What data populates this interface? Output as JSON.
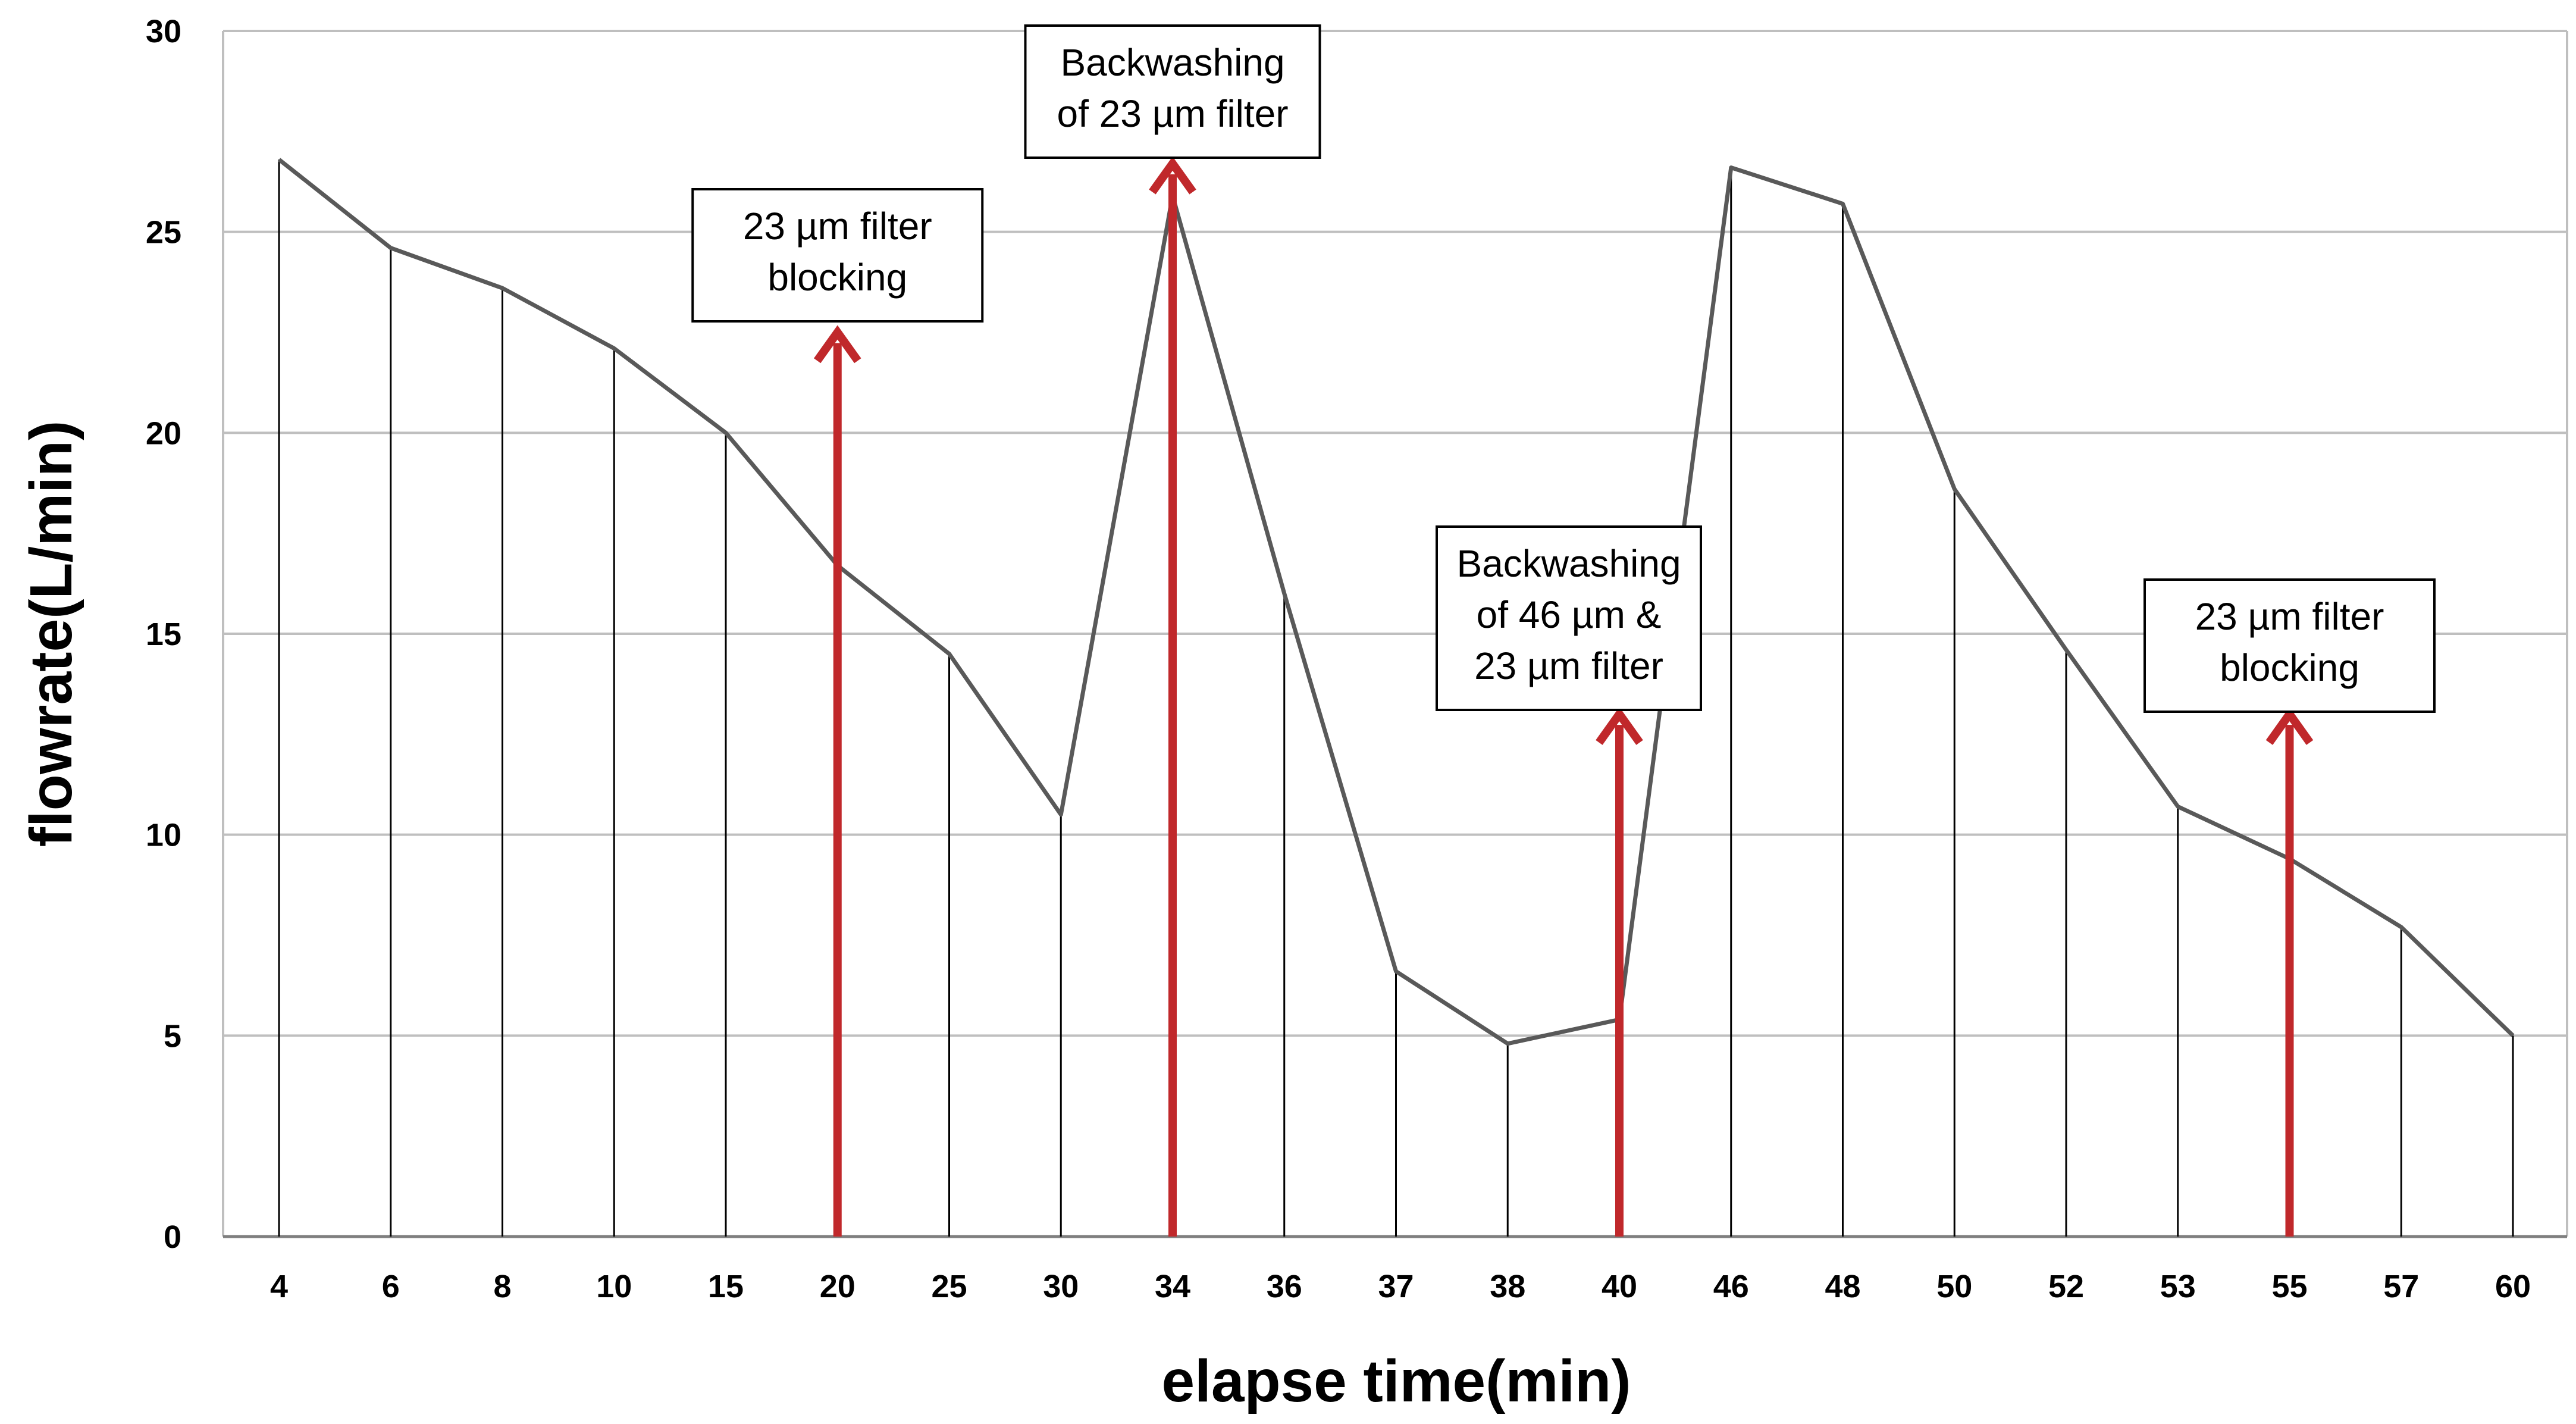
{
  "chart_data": {
    "type": "line",
    "title": "",
    "xlabel": "elapse time(min)",
    "ylabel": "flowrate(L/min)",
    "x": [
      "4",
      "6",
      "8",
      "10",
      "15",
      "20",
      "25",
      "30",
      "34",
      "36",
      "37",
      "38",
      "40",
      "46",
      "48",
      "50",
      "52",
      "53",
      "55",
      "57",
      "60"
    ],
    "series": [
      {
        "values": [
          26.8,
          24.6,
          23.6,
          22.1,
          20.0,
          16.7,
          14.5,
          10.5,
          25.9,
          16.0,
          6.6,
          4.8,
          5.4,
          26.6,
          25.7,
          18.6,
          14.6,
          10.7,
          9.4,
          7.7,
          5.0
        ]
      }
    ],
    "ylim": [
      0,
      30
    ],
    "yticks": [
      0,
      5,
      10,
      15,
      20,
      25,
      30
    ],
    "grid": true,
    "drop_lines": true,
    "annotations": [
      {
        "lines": [
          "23 µm filter",
          "blocking"
        ],
        "x": "20",
        "arrow_to": 22.5
      },
      {
        "lines": [
          "Backwashing",
          "of 23 µm filter"
        ],
        "x": "34",
        "arrow_to": 26.7
      },
      {
        "lines": [
          "Backwashing",
          "of 46 µm &",
          "23 µm filter"
        ],
        "x": "40",
        "arrow_to": 13.0
      },
      {
        "lines": [
          "23 µm filter",
          "blocking"
        ],
        "x": "55",
        "arrow_to": 13.0
      }
    ],
    "colors": {
      "line": "#595959",
      "drop_line": "#000000",
      "grid": "#bfbfbf",
      "arrow": "#c0282b"
    }
  }
}
